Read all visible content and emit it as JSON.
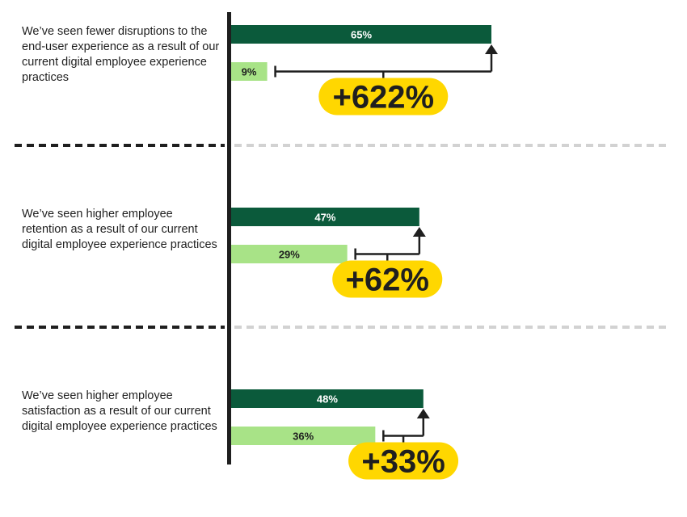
{
  "chart_data": {
    "type": "bar",
    "categories": [
      "We’ve seen fewer disruptions to the end-user experience as a result of our current digital employee experience practices",
      "We’ve seen higher employee retention as a result of our current digital employee experience practices",
      "We’ve seen higher employee satisfaction as a result of our current digital employee experience practices"
    ],
    "series": [
      {
        "values": [
          65,
          47,
          48
        ],
        "labels": [
          "65%",
          "47%",
          "48%"
        ],
        "color": "#0b5a3b"
      },
      {
        "values": [
          9,
          29,
          36
        ],
        "labels": [
          "9%",
          "29%",
          "36%"
        ],
        "color": "#a8e387"
      }
    ],
    "differences": [
      "+622%",
      "+62%",
      "+33%"
    ],
    "difference_color": "#ffd700",
    "xlim": [
      0,
      65
    ]
  }
}
